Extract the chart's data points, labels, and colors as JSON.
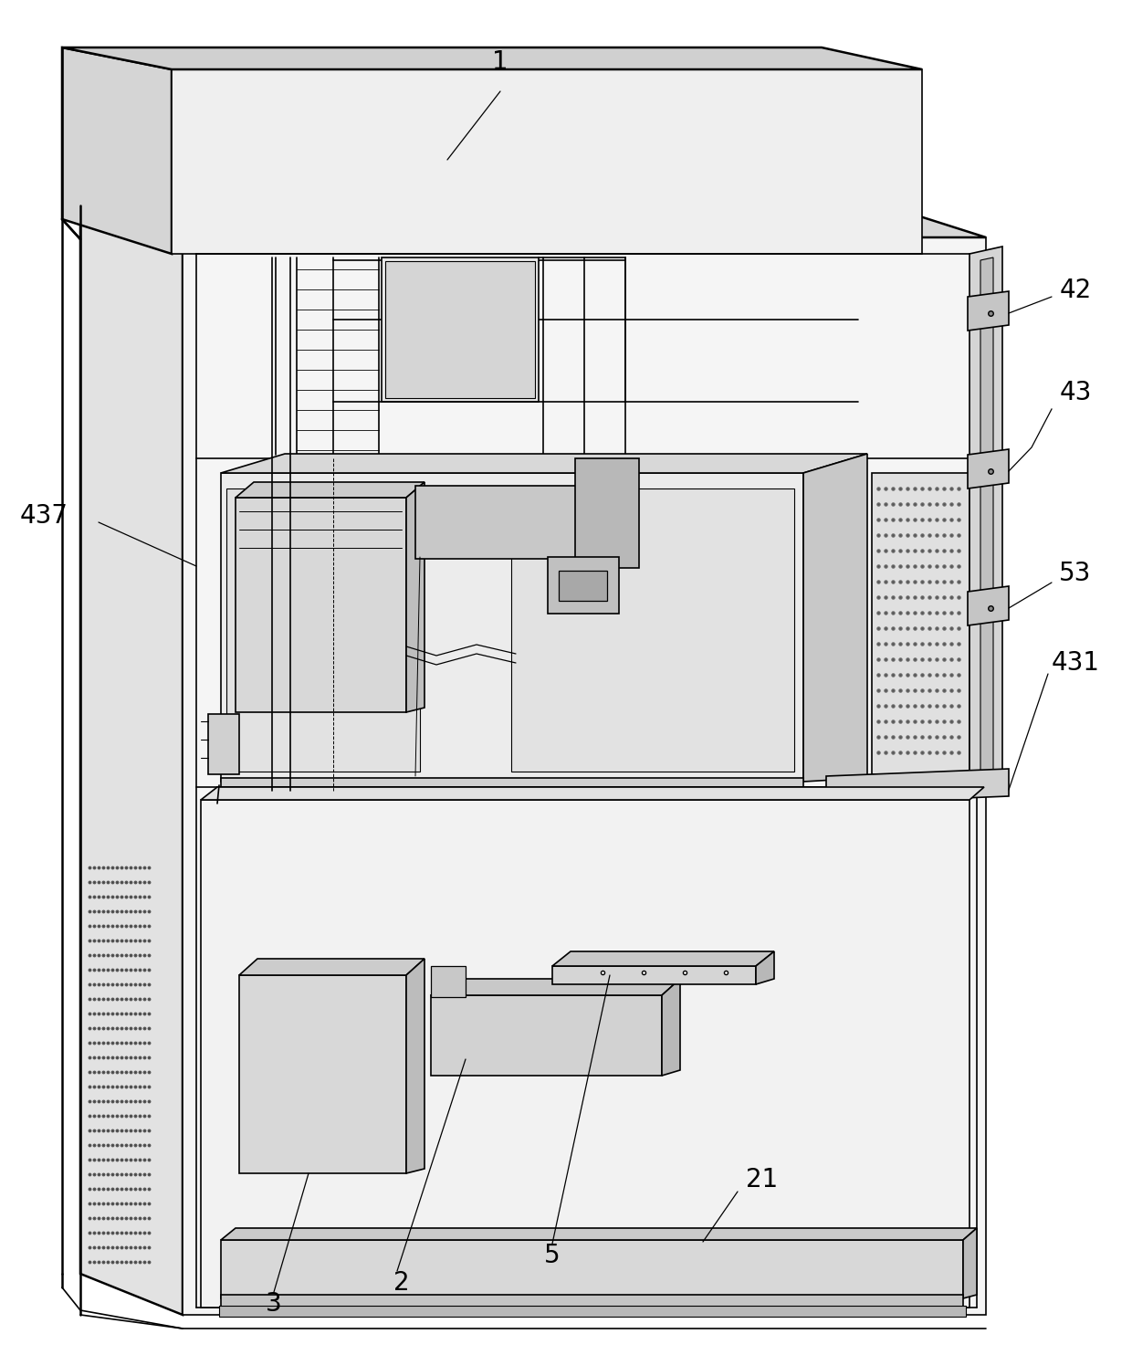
{
  "bg_color": "#ffffff",
  "line_color": "#000000",
  "line_width": 1.2,
  "figsize": [
    12.4,
    14.84
  ],
  "dpi": 100
}
